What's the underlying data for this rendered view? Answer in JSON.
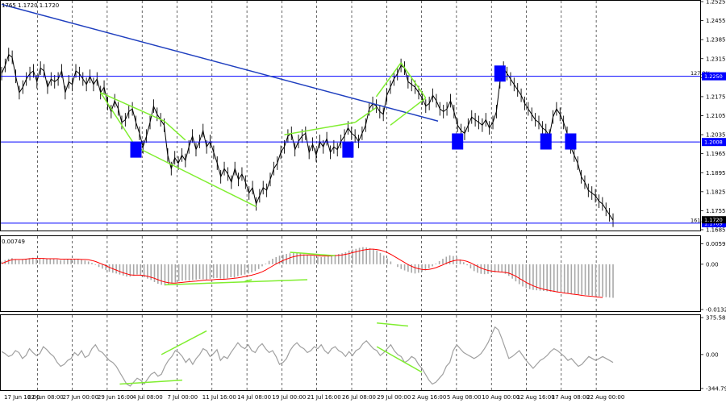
{
  "chart_data": {
    "type": "line",
    "symbol_header": "1765 1.1720 1.1720",
    "x_tick_labels": [
      "17 Jun 16:00",
      "22 Jun 08:00",
      "27 Jun 00:00",
      "29 Jun 16:00",
      "4 Jul 08:00",
      "7 Jul 00:00",
      "11 Jul 16:00",
      "14 Jul 08:00",
      "19 Jul 00:00",
      "21 Jul 16:00",
      "26 Jul 08:00",
      "29 Jul 00:00",
      "2 Aug 16:00",
      "5 Aug 08:00",
      "10 Aug 00:00",
      "12 Aug 16:00",
      "17 Aug 08:00",
      "22 Aug 00:00"
    ],
    "main_panel": {
      "y_range": [
        1.1685,
        1.2525
      ],
      "y_ticks": [
        "1.2525",
        "1.2455",
        "1.2385",
        "1.2315",
        "1.2245",
        "1.2175",
        "1.2105",
        "1.2035",
        "1.1965",
        "1.1895",
        "1.1825",
        "1.1755",
        "1.1685"
      ],
      "price_series": [
        1.226,
        1.229,
        1.233,
        1.232,
        1.225,
        1.219,
        1.221,
        1.224,
        1.226,
        1.227,
        1.223,
        1.228,
        1.227,
        1.221,
        1.224,
        1.223,
        1.224,
        1.227,
        1.219,
        1.223,
        1.222,
        1.227,
        1.226,
        1.224,
        1.222,
        1.225,
        1.222,
        1.224,
        1.219,
        1.221,
        1.215,
        1.212,
        1.216,
        1.213,
        1.208,
        1.209,
        1.212,
        1.213,
        1.208,
        1.204,
        1.199,
        1.203,
        1.208,
        1.214,
        1.211,
        1.209,
        1.207,
        1.196,
        1.191,
        1.195,
        1.193,
        1.196,
        1.194,
        1.199,
        1.203,
        1.198,
        1.201,
        1.205,
        1.199,
        1.201,
        1.197,
        1.193,
        1.188,
        1.191,
        1.189,
        1.186,
        1.191,
        1.187,
        1.189,
        1.186,
        1.182,
        1.184,
        1.178,
        1.181,
        1.184,
        1.183,
        1.187,
        1.191,
        1.193,
        1.197,
        1.199,
        1.203,
        1.204,
        1.198,
        1.201,
        1.203,
        1.204,
        1.197,
        1.2,
        1.196,
        1.201,
        1.199,
        1.202,
        1.197,
        1.199,
        1.198,
        1.201,
        1.203,
        1.206,
        1.204,
        1.203,
        1.201,
        1.204,
        1.207,
        1.213,
        1.215,
        1.214,
        1.212,
        1.211,
        1.218,
        1.221,
        1.224,
        1.226,
        1.229,
        1.228,
        1.223,
        1.222,
        1.221,
        1.219,
        1.217,
        1.214,
        1.215,
        1.218,
        1.216,
        1.213,
        1.212,
        1.213,
        1.216,
        1.212,
        1.207,
        1.205,
        1.204,
        1.207,
        1.21,
        1.209,
        1.208,
        1.207,
        1.209,
        1.206,
        1.208,
        1.212,
        1.223,
        1.228,
        1.226,
        1.224,
        1.222,
        1.22,
        1.218,
        1.215,
        1.213,
        1.211,
        1.209,
        1.208,
        1.206,
        1.205,
        1.203,
        1.21,
        1.213,
        1.211,
        1.208,
        1.204,
        1.199,
        1.196,
        1.193,
        1.188,
        1.186,
        1.183,
        1.182,
        1.181,
        1.179,
        1.178,
        1.176,
        1.174,
        1.172
      ],
      "levels": [
        {
          "value": 1.225,
          "label": "1.2250",
          "tag": "127.2%",
          "color": "#0000ff"
        },
        {
          "value": 1.2008,
          "label": "1.2008",
          "tag": "",
          "color": "#0000ff"
        },
        {
          "value": 1.1709,
          "label": "1.1709",
          "tag": "161.8%",
          "color": "#0000ff"
        }
      ],
      "current_price": "1.1720",
      "trendline_color": "#1f3fbf",
      "divergence_color": "#80ee30",
      "marker_color": "#0000ff"
    },
    "macd_panel": {
      "y_ticks": [
        "0.00596",
        "0.00",
        "-0.01321"
      ],
      "header": "0.00749",
      "histogram_color": "#a8a8a8",
      "signal_color": "#ff0000",
      "values": [
        0.0008,
        0.0012,
        0.0016,
        0.0018,
        0.0015,
        0.0012,
        0.0014,
        0.0016,
        0.0018,
        0.0019,
        0.0017,
        0.0018,
        0.0016,
        0.0015,
        0.0017,
        0.0016,
        0.0014,
        0.0012,
        0.0013,
        0.0015,
        0.0016,
        0.0016,
        0.0014,
        0.0013,
        0.0011,
        0.0008,
        0.0004,
        -0.0002,
        -0.0008,
        -0.0013,
        -0.0017,
        -0.0022,
        -0.0025,
        -0.0027,
        -0.003,
        -0.0033,
        -0.0036,
        -0.0036,
        -0.0034,
        -0.003,
        -0.0031,
        -0.0038,
        -0.0042,
        -0.0046,
        -0.0052,
        -0.0057,
        -0.006,
        -0.0062,
        -0.0058,
        -0.0055,
        -0.0053,
        -0.005,
        -0.0048,
        -0.0047,
        -0.0048,
        -0.0046,
        -0.0045,
        -0.0043,
        -0.0044,
        -0.0045,
        -0.0043,
        -0.0041,
        -0.004,
        -0.0042,
        -0.0044,
        -0.0041,
        -0.0038,
        -0.0039,
        -0.0035,
        -0.0032,
        -0.003,
        -0.0027,
        -0.0024,
        -0.002,
        -0.0014,
        -0.0006,
        0.0002,
        0.001,
        0.0016,
        0.0021,
        0.0025,
        0.0028,
        0.003,
        0.0032,
        0.0033,
        0.0034,
        0.0032,
        0.0029,
        0.0027,
        0.0025,
        0.0024,
        0.0022,
        0.0021,
        0.0022,
        0.0024,
        0.0026,
        0.0028,
        0.003,
        0.0032,
        0.0035,
        0.004,
        0.0043,
        0.0045,
        0.0048,
        0.005,
        0.0049,
        0.0047,
        0.0044,
        0.004,
        0.0033,
        0.0025,
        0.0017,
        0.0008,
        0.0,
        -0.0008,
        -0.0014,
        -0.0018,
        -0.0022,
        -0.0025,
        -0.0027,
        -0.0025,
        -0.0022,
        -0.0018,
        -0.0012,
        -0.0006,
        0.0002,
        0.0009,
        0.0016,
        0.0022,
        0.0026,
        0.0024,
        0.002,
        0.0014,
        0.0006,
        -0.0003,
        -0.0012,
        -0.002,
        -0.0025,
        -0.0028,
        -0.0029,
        -0.0028,
        -0.0026,
        -0.0024,
        -0.0023,
        -0.0024,
        -0.0028,
        -0.0034,
        -0.0042,
        -0.005,
        -0.0058,
        -0.0065,
        -0.007,
        -0.0073,
        -0.0075,
        -0.0076,
        -0.0077,
        -0.0078,
        -0.0079,
        -0.008,
        -0.0081,
        -0.0082,
        -0.0083,
        -0.0084,
        -0.0085,
        -0.0086,
        -0.0087,
        -0.0088,
        -0.0089,
        -0.009,
        -0.0091,
        -0.0092,
        -0.0093,
        -0.0094,
        -0.0095,
        -0.0096,
        -0.0097,
        -0.0098
      ],
      "signal": [
        0.0002,
        0.0006,
        0.001,
        0.0013,
        0.0014,
        0.0014,
        0.0014,
        0.0015,
        0.0016,
        0.0017,
        0.0017,
        0.0017,
        0.0017,
        0.0016,
        0.0016,
        0.0016,
        0.0016,
        0.0015,
        0.0015,
        0.0015,
        0.0015,
        0.0015,
        0.0015,
        0.0014,
        0.0014,
        0.0013,
        0.0011,
        0.0008,
        0.0004,
        0.0,
        -0.0004,
        -0.0009,
        -0.0013,
        -0.0017,
        -0.0021,
        -0.0025,
        -0.0028,
        -0.0031,
        -0.0032,
        -0.0032,
        -0.0032,
        -0.0033,
        -0.0035,
        -0.0038,
        -0.0041,
        -0.0045,
        -0.0049,
        -0.0052,
        -0.0054,
        -0.0055,
        -0.0055,
        -0.0054,
        -0.0053,
        -0.0052,
        -0.0051,
        -0.005,
        -0.0049,
        -0.0048,
        -0.0047,
        -0.0046,
        -0.0046,
        -0.0045,
        -0.0044,
        -0.0044,
        -0.0044,
        -0.0043,
        -0.0042,
        -0.0041,
        -0.004,
        -0.0038,
        -0.0036,
        -0.0034,
        -0.0032,
        -0.0029,
        -0.0026,
        -0.0022,
        -0.0017,
        -0.0011,
        -0.0005,
        0.0001,
        0.0006,
        0.0011,
        0.0015,
        0.0019,
        0.0022,
        0.0024,
        0.0026,
        0.0027,
        0.0027,
        0.0027,
        0.0026,
        0.0025,
        0.0024,
        0.0024,
        0.0024,
        0.0024,
        0.0025,
        0.0026,
        0.0027,
        0.0029,
        0.0031,
        0.0034,
        0.0036,
        0.0039,
        0.0041,
        0.0043,
        0.0044,
        0.0044,
        0.0043,
        0.0041,
        0.0038,
        0.0034,
        0.0029,
        0.0023,
        0.0017,
        0.0011,
        0.0005,
        -0.0001,
        -0.0006,
        -0.001,
        -0.0013,
        -0.0015,
        -0.0016,
        -0.0015,
        -0.0013,
        -0.001,
        -0.0006,
        -0.0002,
        0.0003,
        0.0007,
        0.001,
        0.0012,
        0.0012,
        0.0011,
        0.0008,
        0.0004,
        -0.0001,
        -0.0006,
        -0.0011,
        -0.0015,
        -0.0018,
        -0.002,
        -0.0021,
        -0.0022,
        -0.0023,
        -0.0024,
        -0.0026,
        -0.003,
        -0.0035,
        -0.0041,
        -0.0047,
        -0.0053,
        -0.0058,
        -0.0063,
        -0.0067,
        -0.007,
        -0.0073,
        -0.0075,
        -0.0077,
        -0.0079,
        -0.0081,
        -0.0082,
        -0.0084,
        -0.0085,
        -0.0087,
        -0.0088,
        -0.0089,
        -0.0091,
        -0.0092,
        -0.0093,
        -0.0094,
        -0.0095,
        -0.0096,
        -0.0097
      ],
      "y_range": [
        -0.01321,
        0.00749
      ]
    },
    "cci_panel": {
      "y_ticks": [
        "375.5808",
        "0.00",
        "-344.798"
      ],
      "line_color": "#a0a0a0",
      "y_range": [
        -344.798,
        375.5808
      ],
      "values": [
        30,
        10,
        -20,
        -5,
        40,
        20,
        -40,
        -10,
        60,
        20,
        -10,
        10,
        80,
        50,
        10,
        -20,
        -80,
        -120,
        -100,
        -60,
        -40,
        20,
        -10,
        40,
        -30,
        -10,
        60,
        100,
        40,
        20,
        -20,
        -60,
        -80,
        -120,
        -180,
        -240,
        -300,
        -320,
        -280,
        -240,
        -260,
        -300,
        -250,
        -200,
        -180,
        -220,
        -200,
        -120,
        -60,
        -20,
        40,
        20,
        -20,
        -80,
        -40,
        -100,
        -40,
        0,
        60,
        40,
        -20,
        10,
        50,
        -60,
        -20,
        -40,
        20,
        70,
        120,
        80,
        60,
        100,
        40,
        20,
        80,
        110,
        60,
        20,
        40,
        -20,
        -100,
        -80,
        -40,
        40,
        90,
        120,
        80,
        60,
        20,
        40,
        80,
        60,
        100,
        40,
        10,
        60,
        80,
        40,
        20,
        -20,
        30,
        -10,
        40,
        60,
        110,
        140,
        100,
        60,
        40,
        -10,
        20,
        60,
        100,
        40,
        0,
        -20,
        -80,
        -60,
        -20,
        -40,
        -100,
        -140,
        -200,
        -260,
        -300,
        -280,
        -240,
        -200,
        -120,
        -80,
        40,
        100,
        60,
        20,
        0,
        -20,
        -40,
        -20,
        10,
        60,
        120,
        200,
        280,
        250,
        160,
        60,
        -40,
        -20,
        10,
        40,
        -10,
        -60,
        -100,
        -140,
        -100,
        -60,
        -40,
        -10,
        30,
        60,
        40,
        10,
        -20,
        -60,
        -40,
        -80,
        -120,
        -100,
        -60,
        -20,
        -40,
        -60,
        -40,
        -20,
        -40,
        -60,
        -80
      ]
    }
  }
}
